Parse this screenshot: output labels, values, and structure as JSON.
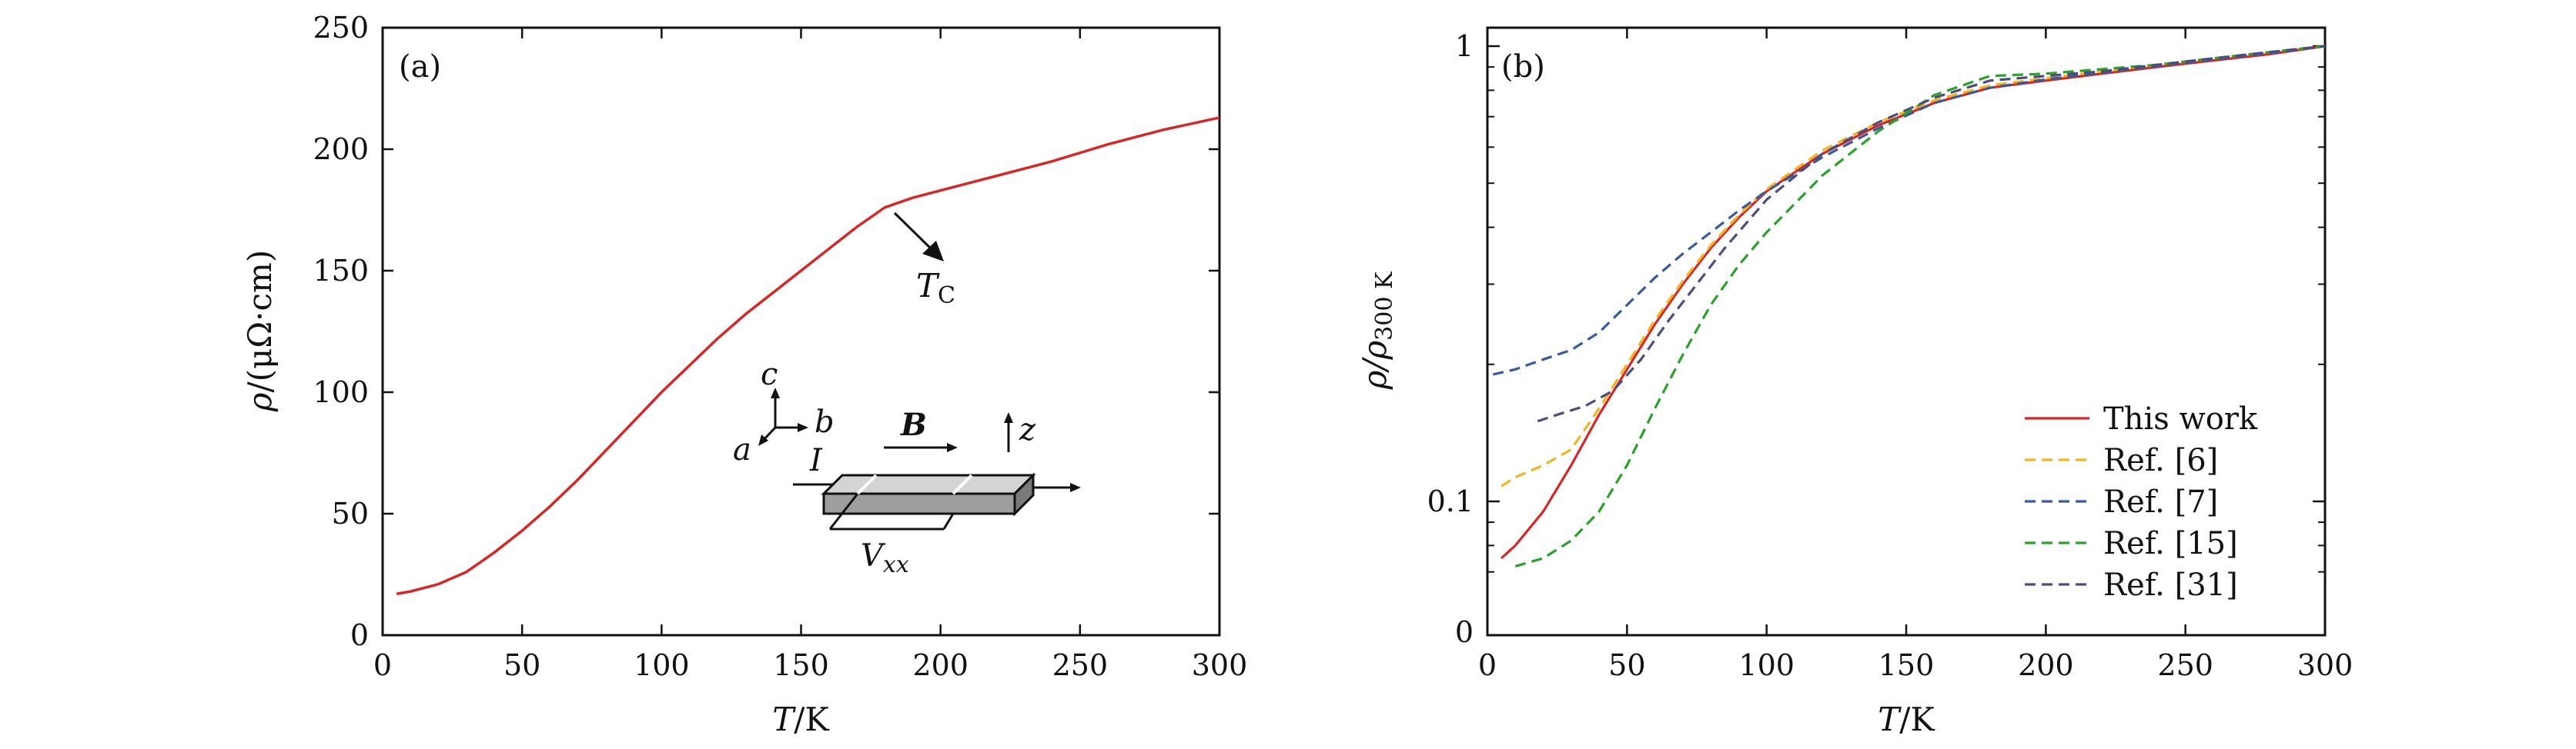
{
  "figure": {
    "panels": [
      {
        "label": "(a)",
        "xlabel_var": "T",
        "xlabel_unit": "/K",
        "ylabel_var": "ρ",
        "ylabel_unit": "/(μΩ·cm)",
        "annotation_var": "T",
        "annotation_sub": "C",
        "inset": {
          "axis_c": "c",
          "axis_b": "b",
          "axis_a": "a",
          "current": "I",
          "field": "B",
          "axis_z": "z",
          "voltage_var": "V",
          "voltage_sub": "xx"
        }
      },
      {
        "label": "(b)",
        "xlabel_var": "T",
        "xlabel_unit": "/K",
        "ylabel_var": "ρ/ρ",
        "ylabel_sub": "300 K"
      }
    ]
  },
  "chart_data": [
    {
      "type": "line",
      "title": "",
      "xlim": [
        0,
        300
      ],
      "ylim": [
        0,
        250
      ],
      "x_ticks": [
        0,
        50,
        100,
        150,
        200,
        250,
        300
      ],
      "x_tick_labels": [
        "0",
        "50",
        "100",
        "150",
        "200",
        "250",
        "300"
      ],
      "y_ticks": [
        0,
        50,
        100,
        150,
        200,
        250
      ],
      "y_tick_labels": [
        "0",
        "50",
        "100",
        "150",
        "200",
        "250"
      ],
      "grid": false,
      "series": [
        {
          "color": "#d62728",
          "style": "solid",
          "x": [
            5,
            10,
            20,
            30,
            40,
            50,
            60,
            70,
            80,
            90,
            100,
            110,
            120,
            130,
            140,
            150,
            160,
            170,
            180,
            190,
            200,
            220,
            240,
            260,
            280,
            300
          ],
          "y": [
            17,
            18,
            21,
            26,
            34,
            43,
            53,
            64,
            76,
            88,
            100,
            111,
            122,
            132,
            141,
            150,
            159,
            168,
            176,
            180,
            183,
            189,
            195,
            202,
            208,
            213
          ]
        }
      ],
      "annotation": {
        "x": 170,
        "y": 176,
        "arrow_to": [
          190,
          155
        ]
      }
    },
    {
      "type": "line",
      "title": "",
      "xlim": [
        0,
        300
      ],
      "y_scale": "log-like",
      "x_ticks": [
        0,
        50,
        100,
        150,
        200,
        250,
        300
      ],
      "x_tick_labels": [
        "0",
        "50",
        "100",
        "150",
        "200",
        "250",
        "300"
      ],
      "y_tick_values": [
        0.1,
        1
      ],
      "y_tick_labels": [
        "0",
        "0.1",
        "1"
      ],
      "legend": "bottom-right",
      "grid": false,
      "series": [
        {
          "name": "This work",
          "color": "#d62728",
          "style": "solid",
          "x": [
            5,
            10,
            20,
            30,
            40,
            50,
            60,
            70,
            80,
            90,
            100,
            120,
            140,
            160,
            180,
            200,
            220,
            240,
            260,
            280,
            300
          ],
          "y": [
            0.075,
            0.08,
            0.095,
            0.12,
            0.155,
            0.195,
            0.245,
            0.3,
            0.36,
            0.42,
            0.48,
            0.58,
            0.67,
            0.75,
            0.81,
            0.84,
            0.87,
            0.9,
            0.93,
            0.96,
            1.0
          ]
        },
        {
          "name": "Ref. [6]",
          "color": "#f0b323",
          "style": "dashed",
          "x": [
            5,
            10,
            20,
            30,
            40,
            50,
            60,
            70,
            80,
            90,
            100,
            120,
            140,
            160,
            180,
            200,
            220,
            240,
            260,
            280,
            300
          ],
          "y": [
            0.108,
            0.113,
            0.12,
            0.13,
            0.16,
            0.2,
            0.25,
            0.305,
            0.365,
            0.425,
            0.485,
            0.59,
            0.68,
            0.76,
            0.82,
            0.85,
            0.88,
            0.91,
            0.94,
            0.97,
            1.0
          ]
        },
        {
          "name": "Ref. [7]",
          "color": "#3a5a9c",
          "style": "dashed",
          "x": [
            2,
            10,
            20,
            30,
            40,
            50,
            60,
            70,
            80,
            90,
            100,
            120,
            140,
            160,
            180,
            200,
            220,
            240,
            260,
            280,
            300
          ],
          "y": [
            0.19,
            0.195,
            0.205,
            0.215,
            0.235,
            0.27,
            0.31,
            0.35,
            0.39,
            0.435,
            0.48,
            0.57,
            0.66,
            0.75,
            0.81,
            0.845,
            0.875,
            0.905,
            0.935,
            0.965,
            1.0
          ]
        },
        {
          "name": "Ref. [15]",
          "color": "#2ca02c",
          "style": "dashed",
          "x": [
            10,
            20,
            30,
            40,
            50,
            60,
            70,
            80,
            90,
            100,
            110,
            120,
            140,
            160,
            180,
            200,
            220,
            240,
            260,
            280,
            300
          ],
          "y": [
            0.072,
            0.075,
            0.082,
            0.095,
            0.12,
            0.16,
            0.21,
            0.27,
            0.33,
            0.39,
            0.45,
            0.52,
            0.65,
            0.78,
            0.86,
            0.87,
            0.89,
            0.91,
            0.94,
            0.97,
            1.0
          ]
        },
        {
          "name": "Ref. [31]",
          "color": "#4a4e7a",
          "style": "dashed",
          "x": [
            18,
            25,
            35,
            45,
            55,
            65,
            75,
            85,
            100,
            120,
            140,
            160,
            180,
            200,
            220,
            240,
            260,
            280,
            300
          ],
          "y": [
            0.15,
            0.155,
            0.162,
            0.175,
            0.205,
            0.25,
            0.3,
            0.36,
            0.46,
            0.58,
            0.68,
            0.77,
            0.84,
            0.86,
            0.88,
            0.91,
            0.94,
            0.97,
            1.0
          ]
        }
      ]
    }
  ]
}
